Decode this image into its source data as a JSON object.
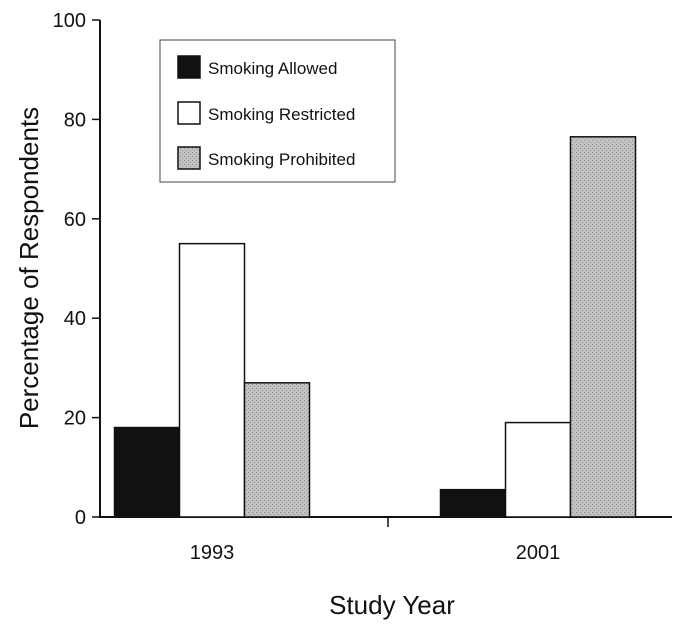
{
  "chart_data": {
    "type": "bar",
    "categories": [
      "1993",
      "2001"
    ],
    "series": [
      {
        "name": "Smoking Allowed",
        "values": [
          18,
          5.5
        ],
        "fill": "#111111"
      },
      {
        "name": "Smoking Restricted",
        "values": [
          55,
          19
        ],
        "fill": "#ffffff"
      },
      {
        "name": "Smoking Prohibited",
        "values": [
          27,
          76.5
        ],
        "fill": "#b9b9b9"
      }
    ],
    "xlabel": "Study Year",
    "ylabel": "Percentage of Respondents",
    "ylim": [
      0,
      100
    ],
    "yticks": [
      "0",
      "20",
      "40",
      "60",
      "80",
      "100"
    ],
    "grid": false,
    "legend_position": "top-left",
    "bar_outline": "#111111"
  }
}
